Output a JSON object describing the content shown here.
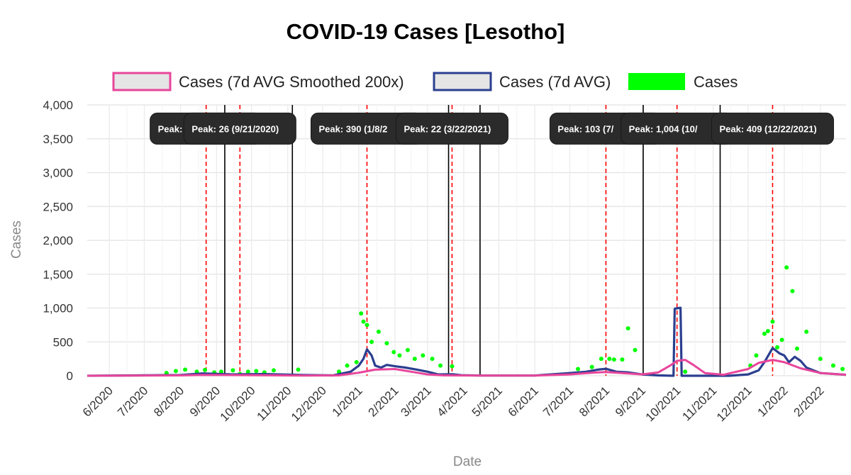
{
  "chart_data": {
    "type": "line",
    "title": "COVID-19 Cases [Lesotho]",
    "xlabel": "Date",
    "ylabel": "Cases",
    "ylim": [
      0,
      4000
    ],
    "xlim": [
      "2020-05-13",
      "2022-02-23"
    ],
    "y_ticks": [
      0,
      500,
      1000,
      1500,
      2000,
      2500,
      3000,
      3500,
      4000
    ],
    "y_tick_labels": [
      "0",
      "500",
      "1,000",
      "1,500",
      "2,000",
      "2,500",
      "3,000",
      "3,500",
      "4,000"
    ],
    "x_ticks": [
      "2020-06-01",
      "2020-07-01",
      "2020-08-01",
      "2020-09-01",
      "2020-10-01",
      "2020-11-01",
      "2020-12-01",
      "2021-01-01",
      "2021-02-01",
      "2021-03-01",
      "2021-04-01",
      "2021-05-01",
      "2021-06-01",
      "2021-07-01",
      "2021-08-01",
      "2021-09-01",
      "2021-10-01",
      "2021-11-01",
      "2021-12-01",
      "2022-01-01",
      "2022-02-01"
    ],
    "x_tick_labels": [
      "6/2020",
      "7/2020",
      "8/2020",
      "9/2020",
      "10/2020",
      "11/2020",
      "12/2020",
      "1/2021",
      "2/2021",
      "3/2021",
      "4/2021",
      "5/2021",
      "6/2021",
      "7/2021",
      "8/2021",
      "9/2021",
      "10/2021",
      "11/2021",
      "12/2021",
      "1/2022",
      "2/2022"
    ],
    "grid": true,
    "legend_position": "top",
    "legend": [
      {
        "label": "Cases (7d AVG Smoothed 200x)",
        "key": "smoothed",
        "color": "#e8459b",
        "fill": "#e5e5e5"
      },
      {
        "label": "Cases (7d AVG)",
        "key": "avg7",
        "color": "#2b3f8f",
        "fill": "#e5e5e5"
      },
      {
        "label": "Cases",
        "key": "cases",
        "color": "#00ff00",
        "fill": "#00ff00"
      }
    ],
    "series": [
      {
        "name": "Cases (7d AVG Smoothed 200x)",
        "type": "line",
        "color": "#e8459b",
        "x": [
          "2020-05-13",
          "2020-08-01",
          "2020-08-20",
          "2020-09-10",
          "2020-10-01",
          "2020-11-15",
          "2020-12-15",
          "2021-01-01",
          "2021-01-15",
          "2021-02-01",
          "2021-02-15",
          "2021-03-01",
          "2021-03-15",
          "2021-04-15",
          "2021-06-01",
          "2021-07-01",
          "2021-07-20",
          "2021-08-01",
          "2021-08-15",
          "2021-09-01",
          "2021-09-15",
          "2021-09-25",
          "2021-10-01",
          "2021-10-08",
          "2021-10-15",
          "2021-10-25",
          "2021-11-10",
          "2021-12-01",
          "2021-12-10",
          "2021-12-22",
          "2022-01-01",
          "2022-01-15",
          "2022-02-01",
          "2022-02-23"
        ],
        "y": [
          0,
          5,
          12,
          10,
          8,
          3,
          5,
          45,
          90,
          100,
          60,
          20,
          5,
          2,
          2,
          20,
          45,
          55,
          40,
          20,
          50,
          150,
          220,
          235,
          160,
          40,
          15,
          100,
          190,
          235,
          200,
          110,
          40,
          15
        ]
      },
      {
        "name": "Cases (7d AVG)",
        "type": "line",
        "color": "#2b3f8f",
        "x": [
          "2020-05-13",
          "2020-08-01",
          "2020-08-20",
          "2020-09-15",
          "2020-10-10",
          "2020-11-15",
          "2020-12-10",
          "2020-12-25",
          "2021-01-01",
          "2021-01-05",
          "2021-01-08",
          "2021-01-12",
          "2021-01-15",
          "2021-01-20",
          "2021-01-25",
          "2021-02-01",
          "2021-02-10",
          "2021-02-20",
          "2021-03-01",
          "2021-03-10",
          "2021-03-22",
          "2021-03-30",
          "2021-04-15",
          "2021-06-01",
          "2021-07-01",
          "2021-07-15",
          "2021-07-25",
          "2021-08-01",
          "2021-08-10",
          "2021-08-20",
          "2021-09-01",
          "2021-09-15",
          "2021-09-28",
          "2021-09-29",
          "2021-10-04",
          "2021-10-05",
          "2021-10-20",
          "2021-11-15",
          "2021-12-01",
          "2021-12-10",
          "2021-12-15",
          "2021-12-20",
          "2021-12-22",
          "2021-12-28",
          "2022-01-01",
          "2022-01-05",
          "2022-01-10",
          "2022-01-15",
          "2022-01-20",
          "2022-02-01",
          "2022-02-23"
        ],
        "y": [
          0,
          10,
          35,
          20,
          25,
          10,
          5,
          60,
          150,
          250,
          390,
          300,
          150,
          120,
          160,
          140,
          120,
          90,
          60,
          20,
          22,
          8,
          3,
          3,
          40,
          60,
          90,
          103,
          60,
          50,
          20,
          5,
          0,
          990,
          1004,
          0,
          0,
          0,
          20,
          80,
          200,
          350,
          409,
          330,
          300,
          200,
          280,
          220,
          120,
          40,
          15
        ]
      },
      {
        "name": "Cases",
        "type": "scatter",
        "color": "#00ff00",
        "x": [
          "2020-07-20",
          "2020-07-28",
          "2020-08-05",
          "2020-08-15",
          "2020-08-22",
          "2020-08-30",
          "2020-09-05",
          "2020-09-15",
          "2020-09-21",
          "2020-09-28",
          "2020-10-05",
          "2020-10-12",
          "2020-10-20",
          "2020-11-10",
          "2020-12-15",
          "2020-12-22",
          "2020-12-30",
          "2021-01-03",
          "2021-01-05",
          "2021-01-08",
          "2021-01-12",
          "2021-01-18",
          "2021-01-25",
          "2021-01-31",
          "2021-02-05",
          "2021-02-12",
          "2021-02-18",
          "2021-02-25",
          "2021-03-05",
          "2021-03-12",
          "2021-03-22",
          "2021-07-08",
          "2021-07-20",
          "2021-07-28",
          "2021-08-04",
          "2021-08-08",
          "2021-08-15",
          "2021-08-20",
          "2021-08-26",
          "2021-10-08",
          "2021-12-03",
          "2021-12-08",
          "2021-12-15",
          "2021-12-18",
          "2021-12-22",
          "2021-12-26",
          "2021-12-30",
          "2022-01-03",
          "2022-01-08",
          "2022-01-12",
          "2022-01-20",
          "2022-02-01",
          "2022-02-12",
          "2022-02-20"
        ],
        "y": [
          40,
          70,
          90,
          60,
          85,
          50,
          60,
          80,
          26,
          60,
          70,
          50,
          80,
          90,
          60,
          150,
          200,
          920,
          800,
          750,
          500,
          650,
          480,
          350,
          300,
          380,
          250,
          300,
          250,
          150,
          140,
          100,
          130,
          250,
          250,
          240,
          240,
          700,
          380,
          60,
          150,
          300,
          620,
          660,
          800,
          420,
          530,
          1600,
          1250,
          400,
          650,
          250,
          150,
          100
        ]
      }
    ],
    "peaks": [
      {
        "label": "Peak: 35 (7/",
        "date": "2020-08-23",
        "level": 3650
      },
      {
        "label": "Peak: 26 (9/21/2020)",
        "date": "2020-09-21",
        "level": 3650
      },
      {
        "label": "Peak: 390 (1/8/2",
        "date": "2021-01-08",
        "level": 3650
      },
      {
        "label": "Peak: 22 (3/22/2021)",
        "date": "2021-03-22",
        "level": 3650
      },
      {
        "label": "Peak: 103 (7/",
        "date": "2021-08-01",
        "level": 3650
      },
      {
        "label": "Peak: 1,004 (10/",
        "date": "2021-10-01",
        "level": 3650
      },
      {
        "label": "Peak: 409 (12/22/2021)",
        "date": "2021-12-22",
        "level": 3650
      }
    ],
    "vlines": [
      "2020-09-08",
      "2020-11-05",
      "2021-03-19",
      "2021-04-15",
      "2021-09-02",
      "2021-11-07"
    ]
  }
}
